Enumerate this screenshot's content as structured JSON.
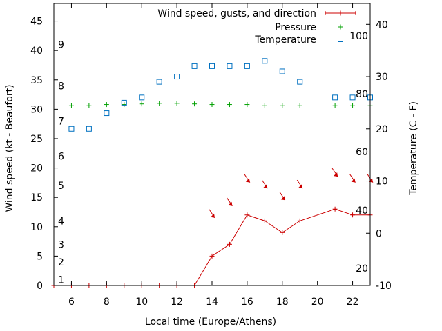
{
  "chart_data": {
    "type": "line",
    "xlabel": "Local time (Europe/Athens)",
    "ylabel": "Wind speed (kt - Beaufort)",
    "y2label": "Temperature (C - F)",
    "xlim": [
      5,
      23
    ],
    "ylim": [
      0,
      48
    ],
    "y2lim": [
      -10,
      44
    ],
    "x_ticks": [
      6,
      8,
      10,
      12,
      14,
      16,
      18,
      20,
      22
    ],
    "y_ticks": [
      0,
      5,
      10,
      15,
      20,
      25,
      30,
      35,
      40,
      45
    ],
    "y2_ticks": [
      -10,
      0,
      10,
      20,
      30,
      40
    ],
    "beaufort_labels": [
      {
        "label": "1",
        "kt": 1
      },
      {
        "label": "2",
        "kt": 4
      },
      {
        "label": "3",
        "kt": 7
      },
      {
        "label": "4",
        "kt": 11
      },
      {
        "label": "5",
        "kt": 17
      },
      {
        "label": "6",
        "kt": 22
      },
      {
        "label": "7",
        "kt": 28
      },
      {
        "label": "8",
        "kt": 34
      },
      {
        "label": "9",
        "kt": 41
      }
    ],
    "fahrenheit_labels": [
      {
        "label": "20",
        "celsius": -6.7
      },
      {
        "label": "40",
        "celsius": 4.4
      },
      {
        "label": "60",
        "celsius": 15.6
      },
      {
        "label": "80",
        "celsius": 26.7
      },
      {
        "label": "100",
        "celsius": 37.8
      }
    ],
    "legend_position": "top-right",
    "series": [
      {
        "name": "Wind speed, gusts, and direction",
        "axis": "left",
        "color": "#cc0000",
        "marker": "plus",
        "points": [
          {
            "x": 5,
            "y": 0
          },
          {
            "x": 6,
            "y": 0
          },
          {
            "x": 7,
            "y": 0
          },
          {
            "x": 8,
            "y": 0
          },
          {
            "x": 9,
            "y": 0
          },
          {
            "x": 10,
            "y": 0
          },
          {
            "x": 11,
            "y": 0
          },
          {
            "x": 12,
            "y": 0
          },
          {
            "x": 13,
            "y": 0
          },
          {
            "x": 14,
            "y": 5
          },
          {
            "x": 15,
            "y": 7
          },
          {
            "x": 16,
            "y": 12
          },
          {
            "x": 17,
            "y": 11
          },
          {
            "x": 18,
            "y": 9
          },
          {
            "x": 19,
            "y": 11
          },
          {
            "x": 21,
            "y": 13
          },
          {
            "x": 22,
            "y": 12
          },
          {
            "x": 23,
            "y": 12
          }
        ]
      },
      {
        "name": "Pressure",
        "axis": "left",
        "color": "#00a000",
        "marker": "plus",
        "points": [
          {
            "x": 6,
            "y": 30.6
          },
          {
            "x": 7,
            "y": 30.6
          },
          {
            "x": 8,
            "y": 30.8
          },
          {
            "x": 9,
            "y": 30.8
          },
          {
            "x": 10,
            "y": 30.9
          },
          {
            "x": 11,
            "y": 31.0
          },
          {
            "x": 12,
            "y": 31.0
          },
          {
            "x": 13,
            "y": 30.9
          },
          {
            "x": 14,
            "y": 30.8
          },
          {
            "x": 15,
            "y": 30.8
          },
          {
            "x": 16,
            "y": 30.8
          },
          {
            "x": 17,
            "y": 30.6
          },
          {
            "x": 18,
            "y": 30.6
          },
          {
            "x": 19,
            "y": 30.6
          },
          {
            "x": 21,
            "y": 30.6
          },
          {
            "x": 22,
            "y": 30.6
          },
          {
            "x": 23,
            "y": 30.6
          }
        ]
      },
      {
        "name": "Temperature",
        "axis": "right",
        "color": "#0070c0",
        "marker": "square",
        "points": [
          {
            "x": 6,
            "y": 20
          },
          {
            "x": 7,
            "y": 20
          },
          {
            "x": 8,
            "y": 23
          },
          {
            "x": 9,
            "y": 25
          },
          {
            "x": 10,
            "y": 26
          },
          {
            "x": 11,
            "y": 29
          },
          {
            "x": 12,
            "y": 30
          },
          {
            "x": 13,
            "y": 32
          },
          {
            "x": 14,
            "y": 32
          },
          {
            "x": 15,
            "y": 32
          },
          {
            "x": 16,
            "y": 32
          },
          {
            "x": 17,
            "y": 33
          },
          {
            "x": 18,
            "y": 31
          },
          {
            "x": 19,
            "y": 29
          },
          {
            "x": 21,
            "y": 26
          },
          {
            "x": 22,
            "y": 26
          },
          {
            "x": 23,
            "y": 26
          }
        ]
      }
    ],
    "wind_arrows": [
      {
        "x": 14,
        "y": 12
      },
      {
        "x": 15,
        "y": 14
      },
      {
        "x": 16,
        "y": 18
      },
      {
        "x": 17,
        "y": 17
      },
      {
        "x": 18,
        "y": 15
      },
      {
        "x": 19,
        "y": 17
      },
      {
        "x": 21,
        "y": 19
      },
      {
        "x": 22,
        "y": 18
      },
      {
        "x": 23,
        "y": 18
      }
    ]
  }
}
